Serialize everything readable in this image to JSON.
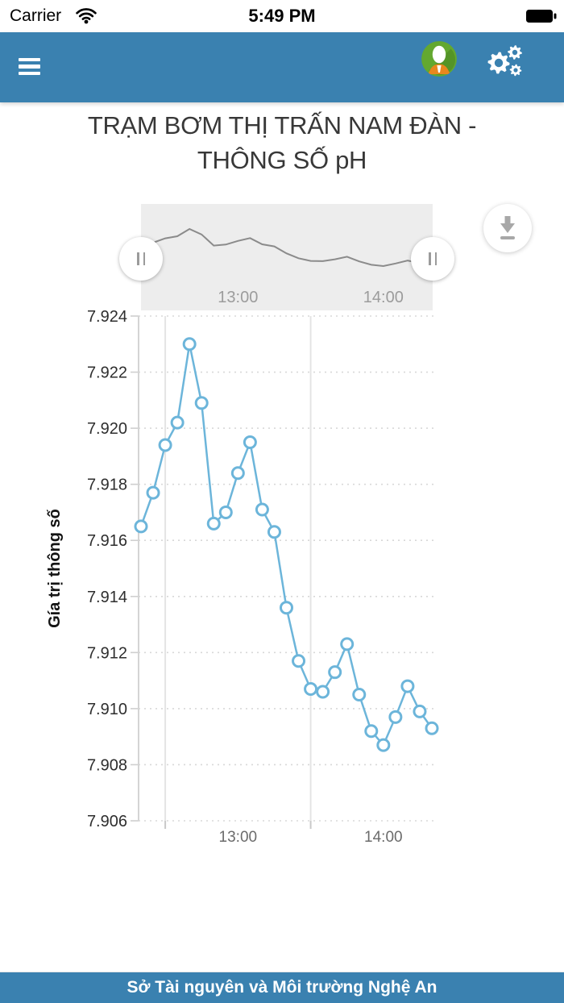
{
  "status_bar": {
    "carrier": "Carrier",
    "time": "5:49 PM",
    "icons": [
      "wifi-icon",
      "battery-icon"
    ]
  },
  "header": {
    "bg_color": "#3a81b0",
    "icons": [
      "hamburger-menu-icon",
      "user-avatar",
      "settings-gears-icon"
    ],
    "avatar_colors": {
      "base": "#63a830",
      "shadow": "#549427",
      "head": "#ffffff",
      "shoulders": "#e8871e"
    }
  },
  "title": {
    "text": "TRẠM BƠM THỊ TRẤN NAM ĐÀN - THÔNG SỐ pH"
  },
  "chart_data": {
    "type": "line",
    "title": "TRẠM BƠM THỊ TRẤN NAM ĐÀN - THÔNG SỐ pH",
    "xlabel": "",
    "ylabel": "Gía trị thông số",
    "x": [
      "12:20",
      "12:25",
      "12:30",
      "12:35",
      "12:40",
      "12:45",
      "12:50",
      "12:55",
      "13:00",
      "13:05",
      "13:10",
      "13:15",
      "13:20",
      "13:25",
      "13:30",
      "13:35",
      "13:40",
      "13:45",
      "13:50",
      "13:55",
      "14:00",
      "14:05",
      "14:10",
      "14:15",
      "14:20"
    ],
    "values": [
      7.9165,
      7.9177,
      7.9194,
      7.9202,
      7.923,
      7.9209,
      7.9166,
      7.917,
      7.9184,
      7.9195,
      7.9171,
      7.9163,
      7.9136,
      7.9117,
      7.9107,
      7.9106,
      7.9113,
      7.9123,
      7.9105,
      7.9092,
      7.9087,
      7.9097,
      7.9108,
      7.9099,
      7.9093
    ],
    "ylim": [
      7.906,
      7.924
    ],
    "ytick_step": 0.002,
    "yticks": [
      "7.924",
      "7.922",
      "7.920",
      "7.918",
      "7.916",
      "7.914",
      "7.912",
      "7.910",
      "7.908",
      "7.906"
    ],
    "xticks": [
      "13:00",
      "14:00"
    ],
    "xgridlines": [
      "12:30",
      "13:30"
    ],
    "grid": true,
    "legend": false,
    "line_color": "#6cb5da",
    "marker": {
      "shape": "circle",
      "fill": "#ffffff",
      "radius": 7
    },
    "navigator": {
      "bg": "#ededed",
      "line_color": "#8b8b8b",
      "xticks": [
        "13:00",
        "14:00"
      ],
      "handles": [
        "left-range-handle",
        "right-range-handle"
      ]
    }
  },
  "toolbar": {
    "download_icon": "download-icon"
  },
  "footer": {
    "text": "Sở Tài nguyên và Môi trường Nghệ An"
  }
}
